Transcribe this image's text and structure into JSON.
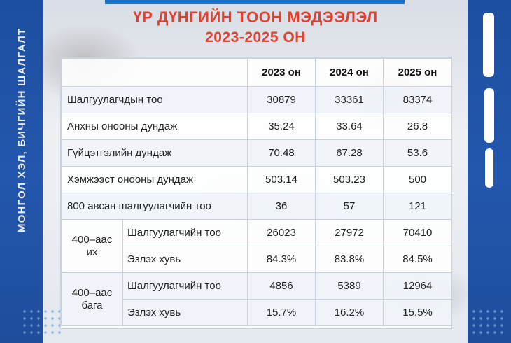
{
  "side_text": "МОНГОЛ ХЭЛ, БИЧГИЙН ШАЛГАЛТ",
  "title_line1": "ҮР ДҮНГИЙН ТООН МЭДЭЭЛЭЛ",
  "title_line2": "2023-2025 ОН",
  "table": {
    "headers": [
      "",
      "2023 он",
      "2024 он",
      "2025 он"
    ],
    "rows": [
      {
        "label": "Шалгуулагчдын тоо",
        "values": [
          "30879",
          "33361",
          "83374"
        ]
      },
      {
        "label": "Анхны онооны дундаж",
        "values": [
          "35.24",
          "33.64",
          "26.8"
        ]
      },
      {
        "label": "Гүйцэтгэлийн дундаж",
        "values": [
          "70.48",
          "67.28",
          "53.6"
        ]
      },
      {
        "label": "Хэмжээст онооны дундаж",
        "values": [
          "503.14",
          "503.23",
          "500"
        ]
      },
      {
        "label": "800 авсан шалгуулагчийн тоо",
        "values": [
          "36",
          "57",
          "121"
        ]
      }
    ],
    "groups": [
      {
        "group_line1": "400–аас",
        "group_line2": "их",
        "rows": [
          {
            "label": "Шалгуулагчийн тоо",
            "values": [
              "26023",
              "27972",
              "70410"
            ]
          },
          {
            "label": "Эзлэх хувь",
            "values": [
              "84.3%",
              "83.8%",
              "84.5%"
            ]
          }
        ]
      },
      {
        "group_line1": "400–аас",
        "group_line2": "бага",
        "rows": [
          {
            "label": "Шалгуулагчийн тоо",
            "values": [
              "4856",
              "5389",
              "12964"
            ]
          },
          {
            "label": "Эзлэх хувь",
            "values": [
              "15.7%",
              "16.2%",
              "15.5%"
            ]
          }
        ]
      }
    ]
  },
  "colors": {
    "brand_blue": "#2357ad",
    "title_red": "#e2412d"
  }
}
